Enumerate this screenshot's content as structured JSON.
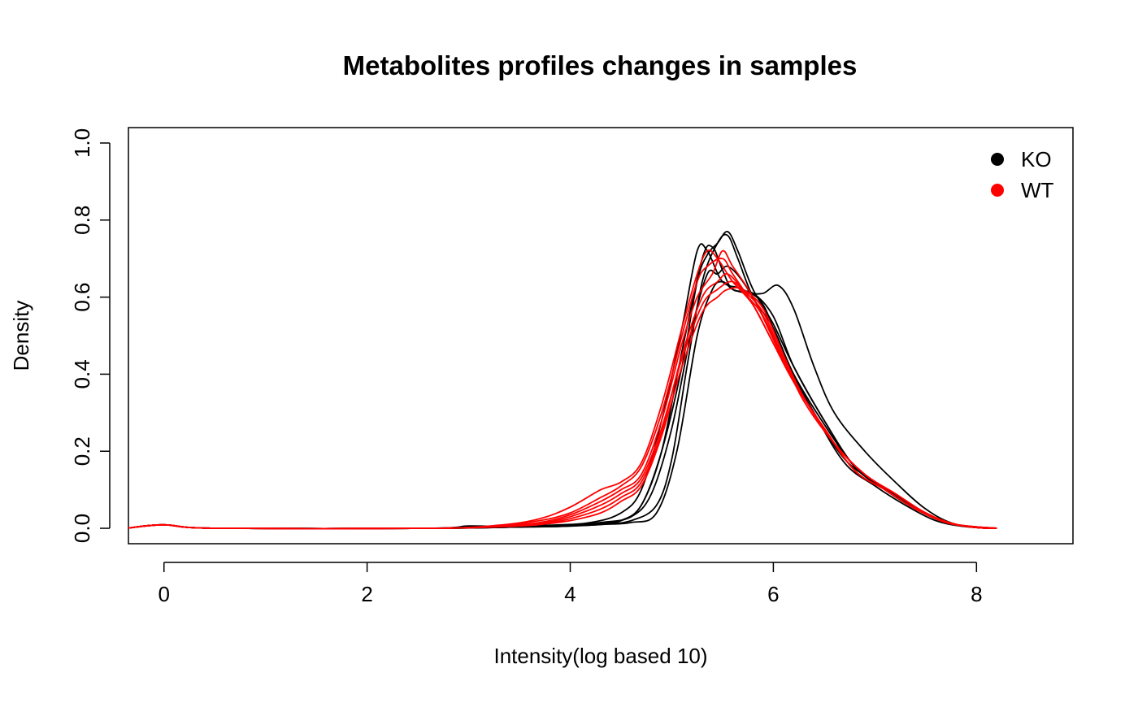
{
  "chart_data": {
    "type": "line",
    "title": "Metabolites profiles changes in  samples",
    "xlabel": "Intensity(log based 10)",
    "ylabel": "Density",
    "xlim": [
      -0.35,
      8.95
    ],
    "ylim": [
      -0.04,
      1.04
    ],
    "xticks": [
      0,
      2,
      4,
      6,
      8
    ],
    "yticks": [
      0.0,
      0.2,
      0.4,
      0.6,
      0.8,
      1.0
    ],
    "xtick_labels": [
      "0",
      "2",
      "4",
      "6",
      "8"
    ],
    "ytick_labels": [
      "0.0",
      "0.2",
      "0.4",
      "0.6",
      "0.8",
      "1.0"
    ],
    "grid": false,
    "legend_position": "top-right",
    "legend": [
      {
        "label": "KO",
        "color": "#000000"
      },
      {
        "label": "WT",
        "color": "#ff0000"
      }
    ],
    "series": [
      {
        "group": "KO",
        "color": "#000000",
        "points": [
          [
            -0.35,
            0.001
          ],
          [
            0,
            0.009
          ],
          [
            0.5,
            0.0
          ],
          [
            2.6,
            0.0
          ],
          [
            3.0,
            0.006
          ],
          [
            3.4,
            0.004
          ],
          [
            3.8,
            0.006
          ],
          [
            4.2,
            0.012
          ],
          [
            4.5,
            0.02
          ],
          [
            4.7,
            0.06
          ],
          [
            4.9,
            0.2
          ],
          [
            5.1,
            0.46
          ],
          [
            5.3,
            0.7
          ],
          [
            5.4,
            0.73
          ],
          [
            5.5,
            0.67
          ],
          [
            5.6,
            0.62
          ],
          [
            5.8,
            0.61
          ],
          [
            6.0,
            0.55
          ],
          [
            6.2,
            0.42
          ],
          [
            6.5,
            0.28
          ],
          [
            6.8,
            0.16
          ],
          [
            7.1,
            0.1
          ],
          [
            7.4,
            0.05
          ],
          [
            7.7,
            0.015
          ],
          [
            8.0,
            0.002
          ],
          [
            8.2,
            0.0
          ]
        ]
      },
      {
        "group": "KO",
        "color": "#000000",
        "points": [
          [
            -0.35,
            0.001
          ],
          [
            0,
            0.009
          ],
          [
            0.5,
            0.0
          ],
          [
            2.6,
            0.0
          ],
          [
            3.2,
            0.004
          ],
          [
            3.8,
            0.008
          ],
          [
            4.2,
            0.015
          ],
          [
            4.5,
            0.04
          ],
          [
            4.7,
            0.1
          ],
          [
            4.9,
            0.28
          ],
          [
            5.1,
            0.52
          ],
          [
            5.25,
            0.72
          ],
          [
            5.35,
            0.72
          ],
          [
            5.5,
            0.64
          ],
          [
            5.7,
            0.62
          ],
          [
            5.9,
            0.58
          ],
          [
            6.1,
            0.45
          ],
          [
            6.4,
            0.3
          ],
          [
            6.7,
            0.17
          ],
          [
            7.0,
            0.11
          ],
          [
            7.3,
            0.06
          ],
          [
            7.6,
            0.02
          ],
          [
            7.9,
            0.004
          ],
          [
            8.2,
            0.0
          ]
        ]
      },
      {
        "group": "KO",
        "color": "#000000",
        "points": [
          [
            -0.35,
            0.001
          ],
          [
            0,
            0.009
          ],
          [
            0.5,
            0.0
          ],
          [
            2.6,
            0.0
          ],
          [
            3.4,
            0.003
          ],
          [
            3.9,
            0.006
          ],
          [
            4.3,
            0.015
          ],
          [
            4.6,
            0.03
          ],
          [
            4.8,
            0.09
          ],
          [
            5.0,
            0.26
          ],
          [
            5.2,
            0.52
          ],
          [
            5.35,
            0.66
          ],
          [
            5.45,
            0.66
          ],
          [
            5.55,
            0.68
          ],
          [
            5.7,
            0.64
          ],
          [
            5.9,
            0.55
          ],
          [
            6.1,
            0.44
          ],
          [
            6.4,
            0.3
          ],
          [
            6.7,
            0.18
          ],
          [
            7.0,
            0.12
          ],
          [
            7.3,
            0.07
          ],
          [
            7.6,
            0.025
          ],
          [
            7.9,
            0.005
          ],
          [
            8.2,
            0.0
          ]
        ]
      },
      {
        "group": "KO",
        "color": "#000000",
        "points": [
          [
            -0.35,
            0.001
          ],
          [
            0,
            0.009
          ],
          [
            0.5,
            0.0
          ],
          [
            2.6,
            0.0
          ],
          [
            3.4,
            0.003
          ],
          [
            3.9,
            0.007
          ],
          [
            4.3,
            0.01
          ],
          [
            4.5,
            0.02
          ],
          [
            4.7,
            0.06
          ],
          [
            4.9,
            0.2
          ],
          [
            5.1,
            0.42
          ],
          [
            5.25,
            0.64
          ],
          [
            5.35,
            0.71
          ],
          [
            5.45,
            0.74
          ],
          [
            5.55,
            0.77
          ],
          [
            5.65,
            0.72
          ],
          [
            5.8,
            0.62
          ],
          [
            6.0,
            0.53
          ],
          [
            6.2,
            0.42
          ],
          [
            6.5,
            0.28
          ],
          [
            6.8,
            0.16
          ],
          [
            7.1,
            0.1
          ],
          [
            7.4,
            0.05
          ],
          [
            7.7,
            0.015
          ],
          [
            8.0,
            0.002
          ],
          [
            8.2,
            0.0
          ]
        ]
      },
      {
        "group": "KO",
        "color": "#000000",
        "points": [
          [
            -0.35,
            0.001
          ],
          [
            0,
            0.009
          ],
          [
            0.5,
            0.0
          ],
          [
            2.6,
            0.0
          ],
          [
            3.4,
            0.003
          ],
          [
            3.9,
            0.005
          ],
          [
            4.3,
            0.01
          ],
          [
            4.6,
            0.02
          ],
          [
            4.85,
            0.06
          ],
          [
            5.0,
            0.18
          ],
          [
            5.15,
            0.42
          ],
          [
            5.3,
            0.64
          ],
          [
            5.45,
            0.74
          ],
          [
            5.55,
            0.76
          ],
          [
            5.65,
            0.7
          ],
          [
            5.8,
            0.6
          ],
          [
            6.0,
            0.52
          ],
          [
            6.2,
            0.4
          ],
          [
            6.5,
            0.27
          ],
          [
            6.8,
            0.16
          ],
          [
            7.1,
            0.1
          ],
          [
            7.4,
            0.05
          ],
          [
            7.7,
            0.015
          ],
          [
            8.0,
            0.002
          ],
          [
            8.2,
            0.0
          ]
        ]
      },
      {
        "group": "KO",
        "color": "#000000",
        "points": [
          [
            -0.35,
            0.001
          ],
          [
            0,
            0.009
          ],
          [
            0.5,
            0.0
          ],
          [
            2.6,
            0.0
          ],
          [
            3.4,
            0.003
          ],
          [
            3.9,
            0.005
          ],
          [
            4.3,
            0.01
          ],
          [
            4.6,
            0.015
          ],
          [
            4.85,
            0.04
          ],
          [
            5.05,
            0.2
          ],
          [
            5.25,
            0.5
          ],
          [
            5.4,
            0.62
          ],
          [
            5.5,
            0.64
          ],
          [
            5.6,
            0.62
          ],
          [
            5.75,
            0.61
          ],
          [
            5.9,
            0.61
          ],
          [
            6.05,
            0.63
          ],
          [
            6.2,
            0.57
          ],
          [
            6.4,
            0.42
          ],
          [
            6.6,
            0.3
          ],
          [
            6.9,
            0.2
          ],
          [
            7.2,
            0.12
          ],
          [
            7.5,
            0.05
          ],
          [
            7.8,
            0.01
          ],
          [
            8.2,
            0.0
          ]
        ]
      },
      {
        "group": "WT",
        "color": "#ff0000",
        "points": [
          [
            -0.35,
            0.001
          ],
          [
            0,
            0.009
          ],
          [
            0.5,
            0.0
          ],
          [
            2.6,
            0.0
          ],
          [
            3.3,
            0.008
          ],
          [
            3.7,
            0.025
          ],
          [
            4.0,
            0.055
          ],
          [
            4.3,
            0.1
          ],
          [
            4.5,
            0.12
          ],
          [
            4.7,
            0.17
          ],
          [
            4.9,
            0.32
          ],
          [
            5.1,
            0.52
          ],
          [
            5.25,
            0.66
          ],
          [
            5.35,
            0.72
          ],
          [
            5.45,
            0.7
          ],
          [
            5.6,
            0.64
          ],
          [
            5.8,
            0.58
          ],
          [
            6.0,
            0.48
          ],
          [
            6.2,
            0.38
          ],
          [
            6.5,
            0.26
          ],
          [
            6.8,
            0.15
          ],
          [
            7.1,
            0.1
          ],
          [
            7.4,
            0.05
          ],
          [
            7.7,
            0.015
          ],
          [
            8.0,
            0.002
          ],
          [
            8.2,
            0.0
          ]
        ]
      },
      {
        "group": "WT",
        "color": "#ff0000",
        "points": [
          [
            -0.35,
            0.001
          ],
          [
            0,
            0.009
          ],
          [
            0.5,
            0.0
          ],
          [
            2.6,
            0.0
          ],
          [
            3.3,
            0.006
          ],
          [
            3.7,
            0.02
          ],
          [
            4.0,
            0.04
          ],
          [
            4.3,
            0.08
          ],
          [
            4.5,
            0.11
          ],
          [
            4.7,
            0.16
          ],
          [
            4.9,
            0.3
          ],
          [
            5.1,
            0.5
          ],
          [
            5.25,
            0.64
          ],
          [
            5.35,
            0.68
          ],
          [
            5.5,
            0.7
          ],
          [
            5.6,
            0.66
          ],
          [
            5.8,
            0.58
          ],
          [
            6.0,
            0.48
          ],
          [
            6.2,
            0.38
          ],
          [
            6.5,
            0.26
          ],
          [
            6.8,
            0.15
          ],
          [
            7.1,
            0.1
          ],
          [
            7.4,
            0.05
          ],
          [
            7.7,
            0.015
          ],
          [
            8.0,
            0.002
          ],
          [
            8.2,
            0.0
          ]
        ]
      },
      {
        "group": "WT",
        "color": "#ff0000",
        "points": [
          [
            -0.35,
            0.001
          ],
          [
            0,
            0.009
          ],
          [
            0.5,
            0.0
          ],
          [
            2.6,
            0.0
          ],
          [
            3.3,
            0.005
          ],
          [
            3.7,
            0.015
          ],
          [
            4.0,
            0.035
          ],
          [
            4.3,
            0.07
          ],
          [
            4.5,
            0.1
          ],
          [
            4.7,
            0.14
          ],
          [
            4.9,
            0.28
          ],
          [
            5.1,
            0.48
          ],
          [
            5.25,
            0.6
          ],
          [
            5.4,
            0.66
          ],
          [
            5.5,
            0.72
          ],
          [
            5.6,
            0.68
          ],
          [
            5.8,
            0.6
          ],
          [
            6.0,
            0.49
          ],
          [
            6.2,
            0.38
          ],
          [
            6.5,
            0.26
          ],
          [
            6.8,
            0.15
          ],
          [
            7.1,
            0.1
          ],
          [
            7.4,
            0.05
          ],
          [
            7.7,
            0.015
          ],
          [
            8.0,
            0.002
          ],
          [
            8.2,
            0.0
          ]
        ]
      },
      {
        "group": "WT",
        "color": "#ff0000",
        "points": [
          [
            -0.35,
            0.001
          ],
          [
            0,
            0.009
          ],
          [
            0.5,
            0.0
          ],
          [
            2.6,
            0.0
          ],
          [
            3.3,
            0.005
          ],
          [
            3.7,
            0.012
          ],
          [
            4.0,
            0.03
          ],
          [
            4.3,
            0.06
          ],
          [
            4.5,
            0.09
          ],
          [
            4.7,
            0.13
          ],
          [
            4.9,
            0.26
          ],
          [
            5.1,
            0.44
          ],
          [
            5.3,
            0.58
          ],
          [
            5.45,
            0.62
          ],
          [
            5.6,
            0.64
          ],
          [
            5.75,
            0.6
          ],
          [
            5.9,
            0.55
          ],
          [
            6.1,
            0.44
          ],
          [
            6.3,
            0.34
          ],
          [
            6.6,
            0.22
          ],
          [
            6.9,
            0.14
          ],
          [
            7.2,
            0.09
          ],
          [
            7.5,
            0.04
          ],
          [
            7.8,
            0.01
          ],
          [
            8.2,
            0.0
          ]
        ]
      },
      {
        "group": "WT",
        "color": "#ff0000",
        "points": [
          [
            -0.35,
            0.001
          ],
          [
            0,
            0.009
          ],
          [
            0.5,
            0.0
          ],
          [
            2.6,
            0.0
          ],
          [
            3.3,
            0.004
          ],
          [
            3.7,
            0.01
          ],
          [
            4.0,
            0.025
          ],
          [
            4.3,
            0.05
          ],
          [
            4.5,
            0.08
          ],
          [
            4.7,
            0.12
          ],
          [
            4.9,
            0.25
          ],
          [
            5.1,
            0.45
          ],
          [
            5.3,
            0.6
          ],
          [
            5.45,
            0.64
          ],
          [
            5.55,
            0.66
          ],
          [
            5.7,
            0.62
          ],
          [
            5.9,
            0.56
          ],
          [
            6.1,
            0.44
          ],
          [
            6.3,
            0.33
          ],
          [
            6.6,
            0.22
          ],
          [
            6.9,
            0.14
          ],
          [
            7.2,
            0.09
          ],
          [
            7.5,
            0.04
          ],
          [
            7.8,
            0.01
          ],
          [
            8.2,
            0.0
          ]
        ]
      },
      {
        "group": "WT",
        "color": "#ff0000",
        "points": [
          [
            -0.35,
            0.001
          ],
          [
            0,
            0.009
          ],
          [
            0.5,
            0.0
          ],
          [
            2.6,
            0.0
          ],
          [
            3.3,
            0.004
          ],
          [
            3.7,
            0.01
          ],
          [
            4.0,
            0.02
          ],
          [
            4.3,
            0.04
          ],
          [
            4.5,
            0.07
          ],
          [
            4.7,
            0.11
          ],
          [
            4.9,
            0.24
          ],
          [
            5.1,
            0.42
          ],
          [
            5.3,
            0.56
          ],
          [
            5.45,
            0.6
          ],
          [
            5.55,
            0.62
          ],
          [
            5.7,
            0.62
          ],
          [
            5.9,
            0.57
          ],
          [
            6.1,
            0.45
          ],
          [
            6.3,
            0.34
          ],
          [
            6.6,
            0.22
          ],
          [
            6.9,
            0.14
          ],
          [
            7.2,
            0.09
          ],
          [
            7.5,
            0.04
          ],
          [
            7.8,
            0.01
          ],
          [
            8.2,
            0.0
          ]
        ]
      }
    ]
  }
}
